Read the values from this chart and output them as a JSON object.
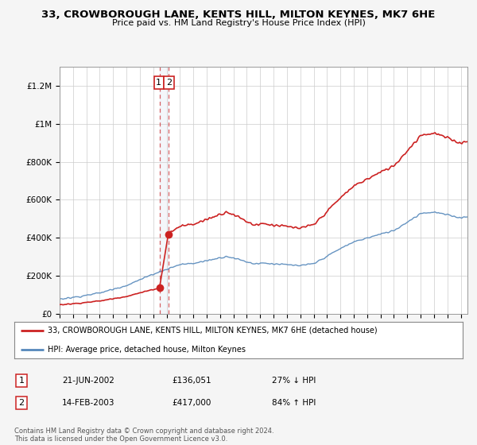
{
  "title": "33, CROWBOROUGH LANE, KENTS HILL, MILTON KEYNES, MK7 6HE",
  "subtitle": "Price paid vs. HM Land Registry's House Price Index (HPI)",
  "legend_line1": "33, CROWBOROUGH LANE, KENTS HILL, MILTON KEYNES, MK7 6HE (detached house)",
  "legend_line2": "HPI: Average price, detached house, Milton Keynes",
  "transaction1_date": "21-JUN-2002",
  "transaction1_price": "£136,051",
  "transaction1_hpi": "27% ↓ HPI",
  "transaction2_date": "14-FEB-2003",
  "transaction2_price": "£417,000",
  "transaction2_hpi": "84% ↑ HPI",
  "footer": "Contains HM Land Registry data © Crown copyright and database right 2024.\nThis data is licensed under the Open Government Licence v3.0.",
  "hpi_color": "#5588bb",
  "price_color": "#cc2222",
  "background_color": "#f5f5f5",
  "plot_bg_color": "#ffffff",
  "ylim": [
    0,
    1300000
  ],
  "xlim_start": 1995.0,
  "xlim_end": 2025.5,
  "transaction1_x": 2002.47,
  "transaction1_y": 136051,
  "transaction2_x": 2003.12,
  "transaction2_y": 417000
}
